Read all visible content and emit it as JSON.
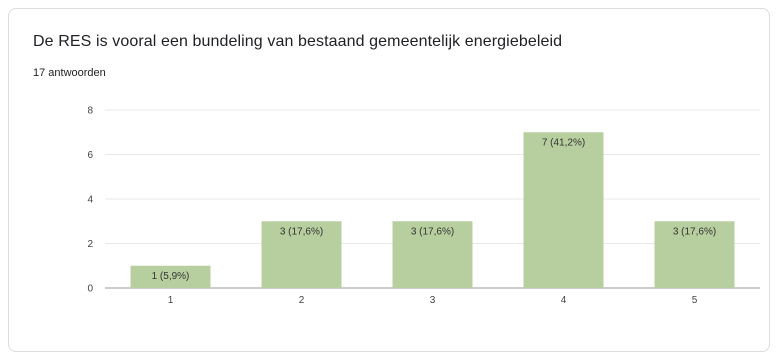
{
  "card": {
    "title": "De RES is vooral een bundeling van bestaand gemeentelijk energiebeleid",
    "response_count": "17 antwoorden"
  },
  "colors": {
    "bar": "#b7cf9f",
    "grid": "#e8e8e8",
    "axis": "#999999"
  },
  "chart_data": {
    "type": "bar",
    "title": "De RES is vooral een bundeling van bestaand gemeentelijk energiebeleid",
    "categories": [
      "1",
      "2",
      "3",
      "4",
      "5"
    ],
    "values": [
      1,
      3,
      3,
      7,
      3
    ],
    "data_labels": [
      "1 (5,9%)",
      "3 (17,6%)",
      "3 (17,6%)",
      "7 (41,2%)",
      "3 (17,6%)"
    ],
    "ylim": [
      0,
      8
    ],
    "yticks": [
      "0",
      "2",
      "4",
      "6",
      "8"
    ],
    "xlabel": "",
    "ylabel": "",
    "grid": true,
    "legend": "none"
  }
}
